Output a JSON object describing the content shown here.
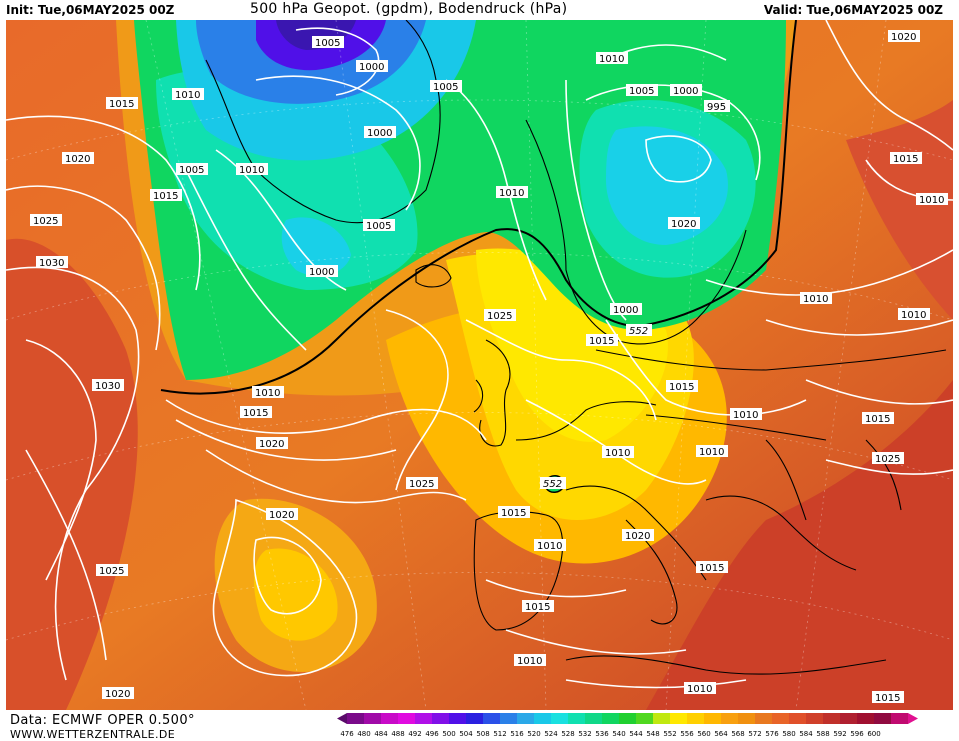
{
  "header": {
    "init_text": "Init: Tue,06MAY2025 00Z",
    "title": "500 hPa Geopot. (gpdm), Bodendruck (hPa)",
    "valid_text": "Valid: Tue,06MAY2025 00Z"
  },
  "footer": {
    "data_source": "Data: ECMWF OPER 0.500°",
    "website": "WWW.WETTERZENTRALE.DE"
  },
  "colors": {
    "deep_low": "#3a16b0",
    "blue": "#2a7de8",
    "cyan": "#19d0e8",
    "green": "#10d660",
    "yellow": "#ffe800",
    "orange": "#f09a10",
    "red_orange": "#e8642a",
    "dark_red": "#c8382a",
    "isobar": "#ffffff",
    "coastline": "#000000"
  },
  "colorbar": {
    "ticks": [
      "476",
      "480",
      "484",
      "488",
      "492",
      "496",
      "500",
      "504",
      "508",
      "512",
      "516",
      "520",
      "524",
      "528",
      "532",
      "536",
      "540",
      "544",
      "548",
      "552",
      "556",
      "560",
      "564",
      "568",
      "572",
      "576",
      "580",
      "584",
      "588",
      "592",
      "596",
      "600"
    ],
    "colors": [
      "#5a0a6a",
      "#7a0a8a",
      "#a00aa8",
      "#c80ac8",
      "#e00ae0",
      "#b010e8",
      "#8010e8",
      "#5010e8",
      "#2a20e0",
      "#2a50e8",
      "#2a80e8",
      "#2aa8e8",
      "#19c8e8",
      "#19e0e0",
      "#10e0b0",
      "#10d888",
      "#10d660",
      "#20d030",
      "#50d820",
      "#c0e810",
      "#ffe800",
      "#ffd000",
      "#ffb800",
      "#f8a010",
      "#f09010",
      "#e87820",
      "#e86428",
      "#e0502a",
      "#d0402a",
      "#c0302a",
      "#b02030",
      "#a01030",
      "#900a40",
      "#c00a70",
      "#e01090"
    ]
  },
  "isobar_labels": [
    "1005",
    "1000",
    "1010",
    "1005",
    "1000",
    "1015",
    "1010",
    "1005",
    "1000",
    "995",
    "1020",
    "1020",
    "1015",
    "1010",
    "1005",
    "1000",
    "1025",
    "1015",
    "1010",
    "1010",
    "1005",
    "1020",
    "1025",
    "1030",
    "1030",
    "1000",
    "1025",
    "1010",
    "1010",
    "1015",
    "1015",
    "1010",
    "552",
    "1015",
    "1020",
    "1015",
    "1010",
    "1010",
    "1010",
    "552",
    "1025",
    "1025",
    "1020",
    "1015",
    "1020",
    "1010",
    "1015",
    "1015",
    "1010",
    "1010",
    "1020",
    "1015"
  ]
}
